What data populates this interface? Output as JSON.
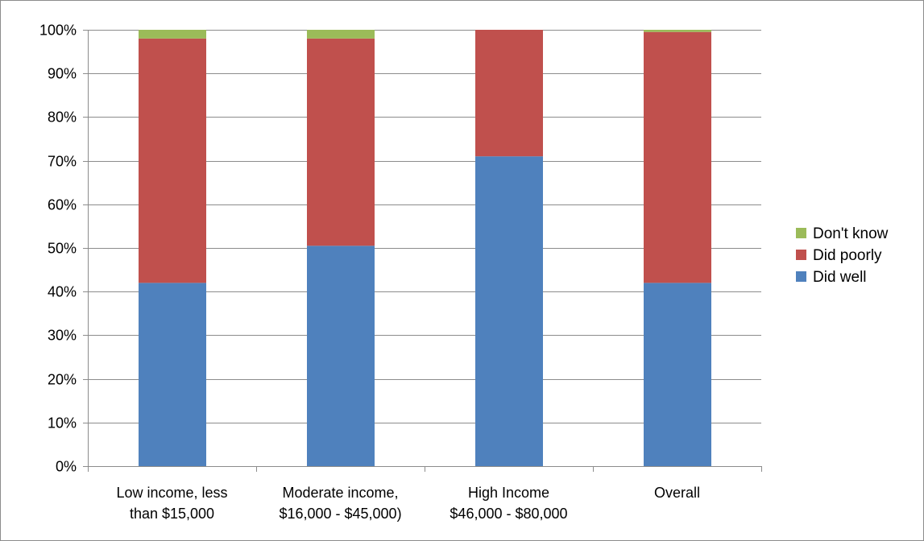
{
  "chart_data": {
    "type": "bar",
    "stacked": true,
    "title": "",
    "xlabel": "",
    "ylabel": "",
    "ylim": [
      0,
      100
    ],
    "y_unit": "%",
    "y_ticks": [
      "0%",
      "10%",
      "20%",
      "30%",
      "40%",
      "50%",
      "60%",
      "70%",
      "80%",
      "90%",
      "100%"
    ],
    "grid": true,
    "legend_position": "right",
    "categories": [
      [
        "Low income, less",
        "than $15,000"
      ],
      [
        "Moderate income,",
        "$16,000 - $45,000)"
      ],
      [
        "High Income",
        "$46,000 - $80,000"
      ],
      [
        "Overall"
      ]
    ],
    "series": [
      {
        "name": "Did well",
        "color": "#4f81bd",
        "values": [
          42,
          50.5,
          71,
          42
        ]
      },
      {
        "name": "Did poorly",
        "color": "#c0504d",
        "values": [
          56,
          47.5,
          29,
          57.5
        ]
      },
      {
        "name": "Don't know",
        "color": "#9bbb59",
        "values": [
          2,
          2,
          0,
          0.5
        ]
      }
    ],
    "legend_order": [
      "Don't know",
      "Did poorly",
      "Did well"
    ]
  }
}
